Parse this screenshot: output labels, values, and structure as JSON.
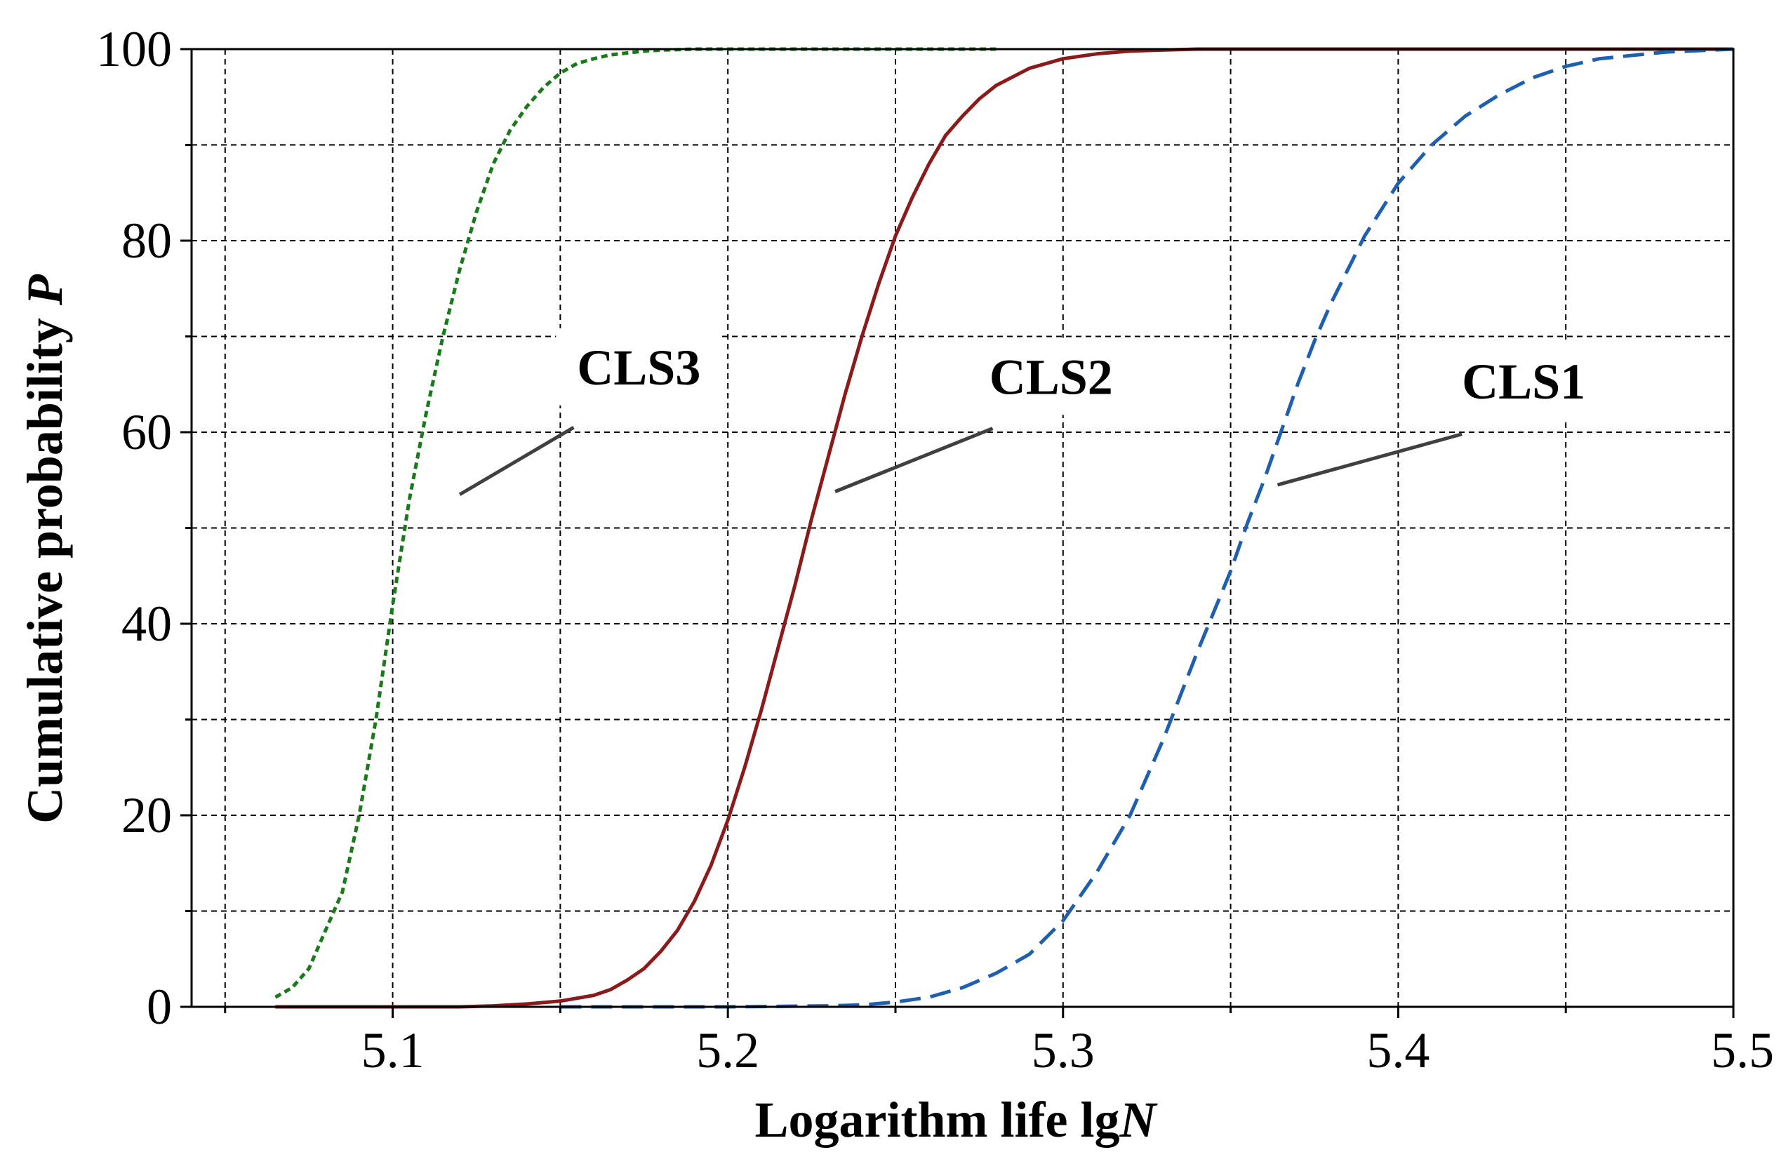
{
  "chart_data": {
    "type": "line",
    "xlabel_text": "Logarithm life lg",
    "xlabel_var": "N",
    "ylabel_text": "Cumulative probability ",
    "ylabel_var": "P",
    "xlim": [
      5.04,
      5.5
    ],
    "ylim": [
      0,
      100
    ],
    "x_ticks": [
      5.1,
      5.2,
      5.3,
      5.4,
      5.5
    ],
    "x_tick_labels": [
      "5.1",
      "5.2",
      "5.3",
      "5.4",
      "5.5"
    ],
    "x_minor_ticks": [
      5.05,
      5.15,
      5.25,
      5.35,
      5.45
    ],
    "y_ticks": [
      0,
      20,
      40,
      60,
      80,
      100
    ],
    "y_tick_labels": [
      "0",
      "20",
      "40",
      "60",
      "80",
      "100"
    ],
    "y_minor_ticks": [
      10,
      30,
      50,
      70,
      90
    ],
    "grid": true,
    "series": [
      {
        "name": "CLS3",
        "color": "#1a7a1a",
        "style": "dotted",
        "x": [
          5.065,
          5.07,
          5.075,
          5.08,
          5.085,
          5.09,
          5.095,
          5.1,
          5.105,
          5.11,
          5.115,
          5.12,
          5.125,
          5.13,
          5.135,
          5.14,
          5.145,
          5.15,
          5.155,
          5.16,
          5.165,
          5.17,
          5.175,
          5.18,
          5.19,
          5.2,
          5.22,
          5.25,
          5.28
        ],
        "values": [
          1,
          2,
          4,
          8,
          12,
          20,
          30,
          42,
          53,
          62,
          70,
          77,
          83,
          88,
          91.5,
          94,
          96,
          97.5,
          98.5,
          99,
          99.4,
          99.6,
          99.8,
          99.9,
          100,
          100,
          100,
          100,
          100
        ],
        "annotation": {
          "label": "CLS3",
          "point": [
            5.12,
            53.5
          ],
          "label_anchor": [
            5.154,
            60.5
          ],
          "label_x": 5.155,
          "label_y": 65
        }
      },
      {
        "name": "CLS2",
        "color": "#8b1a1a",
        "style": "solid",
        "x": [
          5.065,
          5.1,
          5.12,
          5.13,
          5.14,
          5.15,
          5.16,
          5.165,
          5.17,
          5.175,
          5.18,
          5.185,
          5.19,
          5.195,
          5.2,
          5.205,
          5.21,
          5.215,
          5.22,
          5.225,
          5.23,
          5.235,
          5.24,
          5.245,
          5.25,
          5.255,
          5.26,
          5.265,
          5.27,
          5.275,
          5.28,
          5.29,
          5.3,
          5.31,
          5.32,
          5.34,
          5.38,
          5.42,
          5.46,
          5.5
        ],
        "values": [
          0,
          0,
          0,
          0.1,
          0.3,
          0.6,
          1.2,
          1.8,
          2.8,
          4,
          5.8,
          8,
          11,
          14.8,
          19.5,
          25,
          31,
          37.5,
          44,
          51,
          57.5,
          64,
          70,
          75.5,
          80.5,
          84.5,
          88,
          91,
          93,
          94.8,
          96.2,
          98,
          99,
          99.5,
          99.8,
          100,
          100,
          100,
          100,
          100
        ],
        "annotation": {
          "label": "CLS2",
          "point": [
            5.232,
            53.8
          ],
          "label_anchor": [
            5.279,
            60.4
          ],
          "label_x": 5.278,
          "label_y": 64
        }
      },
      {
        "name": "CLS1",
        "color": "#1f5fb0",
        "style": "dashed",
        "x": [
          5.15,
          5.2,
          5.23,
          5.24,
          5.25,
          5.26,
          5.27,
          5.28,
          5.29,
          5.3,
          5.31,
          5.32,
          5.33,
          5.34,
          5.35,
          5.355,
          5.36,
          5.365,
          5.37,
          5.375,
          5.38,
          5.39,
          5.4,
          5.41,
          5.42,
          5.43,
          5.44,
          5.45,
          5.46,
          5.48,
          5.5
        ],
        "values": [
          0,
          0,
          0.1,
          0.2,
          0.5,
          1,
          2,
          3.5,
          5.5,
          9,
          14,
          20,
          28,
          37,
          45.5,
          50.5,
          55,
          60,
          65,
          69.5,
          73.5,
          80.5,
          86,
          90,
          93,
          95.2,
          97,
          98.2,
          99,
          99.7,
          100
        ],
        "annotation": {
          "label": "CLS1",
          "point": [
            5.364,
            54.5
          ],
          "label_anchor": [
            5.419,
            59.8
          ],
          "label_x": 5.419,
          "label_y": 63.5
        }
      }
    ]
  }
}
